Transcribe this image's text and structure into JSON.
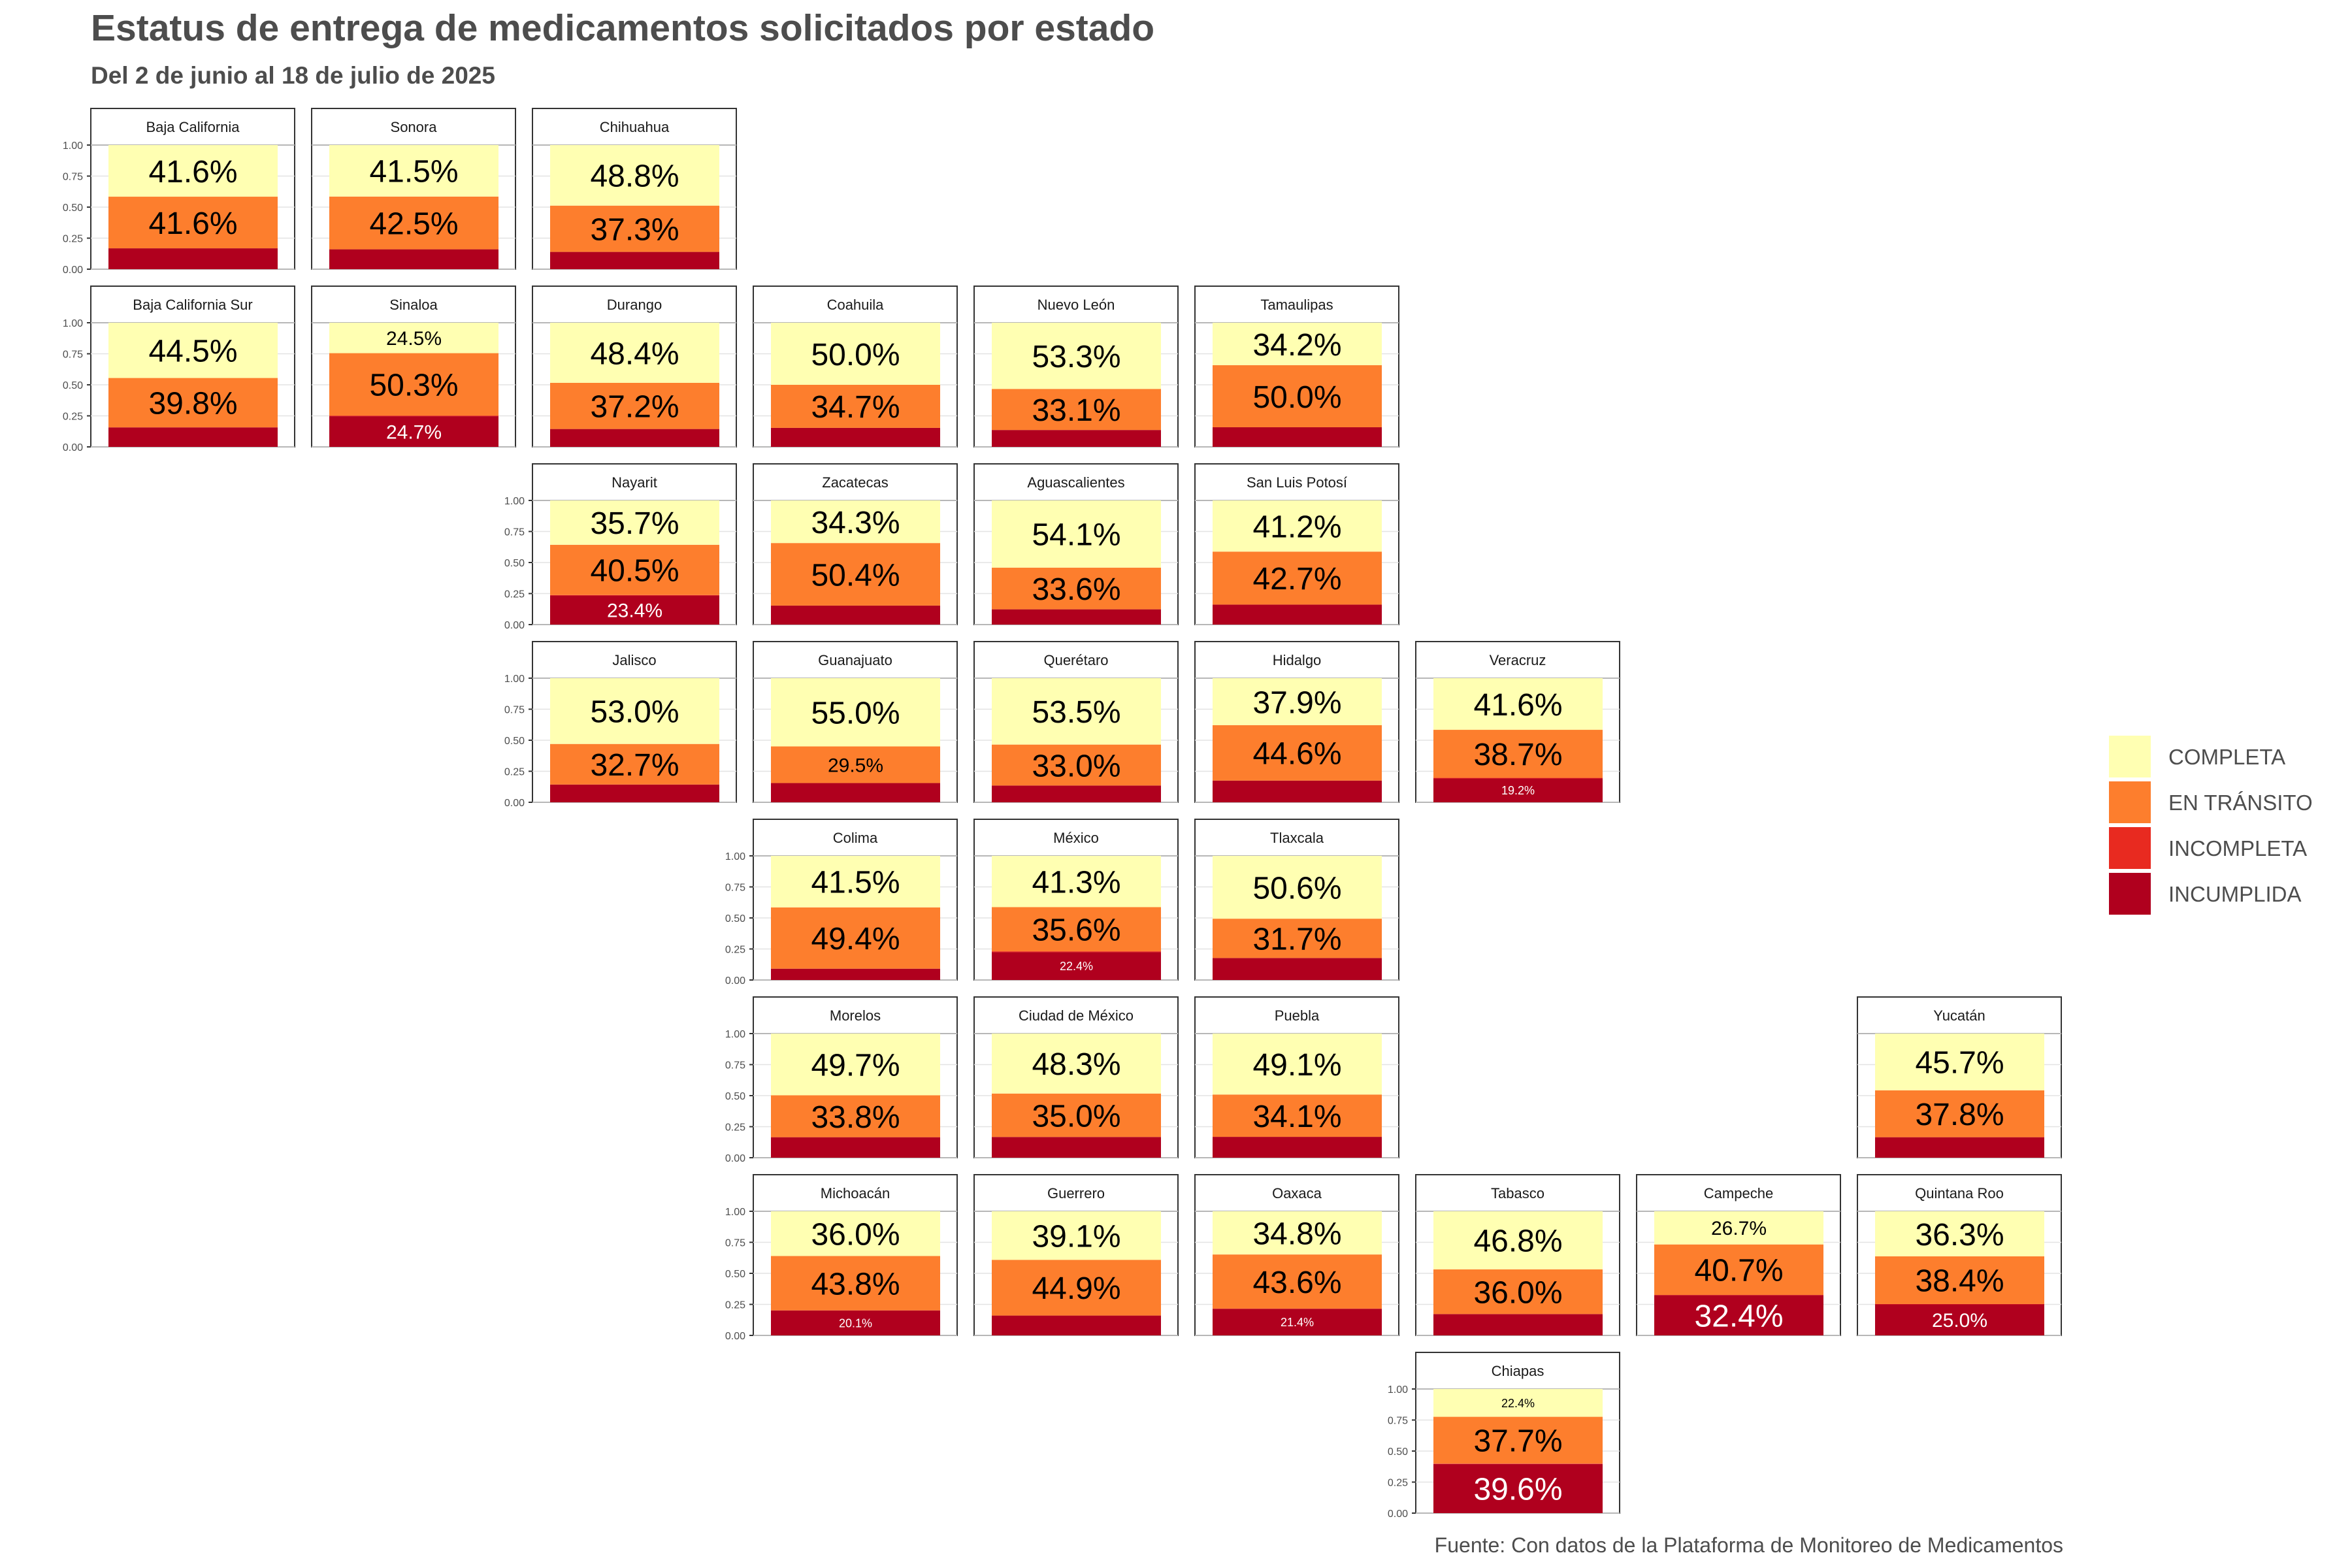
{
  "title": "Estatus de entrega de medicamentos solicitados por estado",
  "subtitle": "Del 2 de junio al 18 de julio de 2025",
  "caption": "Fuente: Con datos de la Plataforma de Monitoreo de Medicamentos",
  "chart_data": {
    "type": "bar",
    "stacked": true,
    "layout": "geofacet-grid-mexico",
    "ylim": [
      0,
      1
    ],
    "yticks": [
      "0.00",
      "0.25",
      "0.50",
      "0.75",
      "1.00"
    ],
    "legend": {
      "position": "right",
      "entries": [
        {
          "label": "COMPLETA",
          "color": "#FFFFB2"
        },
        {
          "label": "EN TRÁNSITO",
          "color": "#FD7E2D"
        },
        {
          "label": "INCOMPLETA",
          "color": "#E82A20"
        },
        {
          "label": "INCUMPLIDA",
          "color": "#B0001E"
        }
      ]
    },
    "facets": [
      {
        "state": "Baja California",
        "row": 0,
        "col": 0,
        "completa": 0.416,
        "transito": 0.416,
        "incompleta": 0.0,
        "incumplida": 0.168,
        "labels": [
          "41.6%",
          "41.6%",
          ""
        ]
      },
      {
        "state": "Sonora",
        "row": 0,
        "col": 1,
        "completa": 0.415,
        "transito": 0.425,
        "incompleta": 0.0,
        "incumplida": 0.16,
        "labels": [
          "41.5%",
          "42.5%",
          ""
        ]
      },
      {
        "state": "Chihuahua",
        "row": 0,
        "col": 2,
        "completa": 0.488,
        "transito": 0.373,
        "incompleta": 0.0,
        "incumplida": 0.139,
        "labels": [
          "48.8%",
          "37.3%",
          ""
        ]
      },
      {
        "state": "Baja California Sur",
        "row": 1,
        "col": 0,
        "completa": 0.445,
        "transito": 0.398,
        "incompleta": 0.0,
        "incumplida": 0.157,
        "labels": [
          "44.5%",
          "39.8%",
          ""
        ]
      },
      {
        "state": "Sinaloa",
        "row": 1,
        "col": 1,
        "completa": 0.245,
        "transito": 0.503,
        "incompleta": 0.005,
        "incumplida": 0.247,
        "labels": [
          "24.5%",
          "50.3%",
          "24.7%"
        ]
      },
      {
        "state": "Durango",
        "row": 1,
        "col": 2,
        "completa": 0.484,
        "transito": 0.372,
        "incompleta": 0.0,
        "incumplida": 0.144,
        "labels": [
          "48.4%",
          "37.2%",
          ""
        ]
      },
      {
        "state": "Coahuila",
        "row": 1,
        "col": 3,
        "completa": 0.5,
        "transito": 0.347,
        "incompleta": 0.0,
        "incumplida": 0.153,
        "labels": [
          "50.0%",
          "34.7%",
          ""
        ]
      },
      {
        "state": "Nuevo León",
        "row": 1,
        "col": 4,
        "completa": 0.533,
        "transito": 0.331,
        "incompleta": 0.0,
        "incumplida": 0.136,
        "labels": [
          "53.3%",
          "33.1%",
          ""
        ]
      },
      {
        "state": "Tamaulipas",
        "row": 1,
        "col": 5,
        "completa": 0.342,
        "transito": 0.5,
        "incompleta": 0.0,
        "incumplida": 0.158,
        "labels": [
          "34.2%",
          "50.0%",
          ""
        ]
      },
      {
        "state": "Nayarit",
        "row": 2,
        "col": 2,
        "completa": 0.357,
        "transito": 0.405,
        "incompleta": 0.004,
        "incumplida": 0.234,
        "labels": [
          "35.7%",
          "40.5%",
          "23.4%"
        ]
      },
      {
        "state": "Zacatecas",
        "row": 2,
        "col": 3,
        "completa": 0.343,
        "transito": 0.504,
        "incompleta": 0.0,
        "incumplida": 0.153,
        "labels": [
          "34.3%",
          "50.4%",
          ""
        ]
      },
      {
        "state": "Aguascalientes",
        "row": 2,
        "col": 4,
        "completa": 0.541,
        "transito": 0.336,
        "incompleta": 0.0,
        "incumplida": 0.123,
        "labels": [
          "54.1%",
          "33.6%",
          ""
        ]
      },
      {
        "state": "San Luis Potosí",
        "row": 2,
        "col": 5,
        "completa": 0.412,
        "transito": 0.427,
        "incompleta": 0.0,
        "incumplida": 0.161,
        "labels": [
          "41.2%",
          "42.7%",
          ""
        ]
      },
      {
        "state": "Jalisco",
        "row": 3,
        "col": 2,
        "completa": 0.53,
        "transito": 0.327,
        "incompleta": 0.0,
        "incumplida": 0.143,
        "labels": [
          "53.0%",
          "32.7%",
          ""
        ]
      },
      {
        "state": "Guanajuato",
        "row": 3,
        "col": 3,
        "completa": 0.55,
        "transito": 0.295,
        "incompleta": 0.0,
        "incumplida": 0.155,
        "labels": [
          "55.0%",
          "29.5%",
          ""
        ]
      },
      {
        "state": "Querétaro",
        "row": 3,
        "col": 4,
        "completa": 0.535,
        "transito": 0.33,
        "incompleta": 0.0,
        "incumplida": 0.135,
        "labels": [
          "53.5%",
          "33.0%",
          ""
        ]
      },
      {
        "state": "Hidalgo",
        "row": 3,
        "col": 5,
        "completa": 0.379,
        "transito": 0.446,
        "incompleta": 0.0,
        "incumplida": 0.175,
        "labels": [
          "37.9%",
          "44.6%",
          ""
        ]
      },
      {
        "state": "Veracruz",
        "row": 3,
        "col": 6,
        "completa": 0.416,
        "transito": 0.387,
        "incompleta": 0.005,
        "incumplida": 0.192,
        "labels": [
          "41.6%",
          "38.7%",
          "19.2%"
        ]
      },
      {
        "state": "Colima",
        "row": 4,
        "col": 3,
        "completa": 0.415,
        "transito": 0.494,
        "incompleta": 0.0,
        "incumplida": 0.091,
        "labels": [
          "41.5%",
          "49.4%",
          ""
        ]
      },
      {
        "state": "México",
        "row": 4,
        "col": 4,
        "completa": 0.413,
        "transito": 0.356,
        "incompleta": 0.007,
        "incumplida": 0.224,
        "labels": [
          "41.3%",
          "35.6%",
          "22.4%"
        ]
      },
      {
        "state": "Tlaxcala",
        "row": 4,
        "col": 5,
        "completa": 0.506,
        "transito": 0.317,
        "incompleta": 0.0,
        "incumplida": 0.177,
        "labels": [
          "50.6%",
          "31.7%",
          ""
        ]
      },
      {
        "state": "Morelos",
        "row": 5,
        "col": 3,
        "completa": 0.497,
        "transito": 0.338,
        "incompleta": 0.0,
        "incumplida": 0.165,
        "labels": [
          "49.7%",
          "33.8%",
          ""
        ]
      },
      {
        "state": "Ciudad de México",
        "row": 5,
        "col": 4,
        "completa": 0.483,
        "transito": 0.35,
        "incompleta": 0.0,
        "incumplida": 0.167,
        "labels": [
          "48.3%",
          "35.0%",
          ""
        ]
      },
      {
        "state": "Puebla",
        "row": 5,
        "col": 5,
        "completa": 0.491,
        "transito": 0.341,
        "incompleta": 0.0,
        "incumplida": 0.168,
        "labels": [
          "49.1%",
          "34.1%",
          ""
        ]
      },
      {
        "state": "Yucatán",
        "row": 5,
        "col": 8,
        "completa": 0.457,
        "transito": 0.378,
        "incompleta": 0.0,
        "incumplida": 0.165,
        "labels": [
          "45.7%",
          "37.8%",
          ""
        ]
      },
      {
        "state": "Michoacán",
        "row": 6,
        "col": 3,
        "completa": 0.36,
        "transito": 0.438,
        "incompleta": 0.001,
        "incumplida": 0.201,
        "labels": [
          "36.0%",
          "43.8%",
          "20.1%"
        ]
      },
      {
        "state": "Guerrero",
        "row": 6,
        "col": 4,
        "completa": 0.391,
        "transito": 0.449,
        "incompleta": 0.0,
        "incumplida": 0.16,
        "labels": [
          "39.1%",
          "44.9%",
          ""
        ]
      },
      {
        "state": "Oaxaca",
        "row": 6,
        "col": 5,
        "completa": 0.348,
        "transito": 0.436,
        "incompleta": 0.002,
        "incumplida": 0.214,
        "labels": [
          "34.8%",
          "43.6%",
          "21.4%"
        ]
      },
      {
        "state": "Tabasco",
        "row": 6,
        "col": 6,
        "completa": 0.468,
        "transito": 0.36,
        "incompleta": 0.0,
        "incumplida": 0.172,
        "labels": [
          "46.8%",
          "36.0%",
          ""
        ]
      },
      {
        "state": "Campeche",
        "row": 6,
        "col": 7,
        "completa": 0.267,
        "transito": 0.407,
        "incompleta": 0.002,
        "incumplida": 0.324,
        "labels": [
          "26.7%",
          "40.7%",
          "32.4%"
        ]
      },
      {
        "state": "Quintana Roo",
        "row": 6,
        "col": 8,
        "completa": 0.363,
        "transito": 0.384,
        "incompleta": 0.003,
        "incumplida": 0.25,
        "labels": [
          "36.3%",
          "38.4%",
          "25.0%"
        ]
      },
      {
        "state": "Chiapas",
        "row": 7,
        "col": 6,
        "completa": 0.224,
        "transito": 0.377,
        "incompleta": 0.003,
        "incumplida": 0.396,
        "labels": [
          "22.4%",
          "37.7%",
          "39.6%"
        ]
      }
    ]
  }
}
